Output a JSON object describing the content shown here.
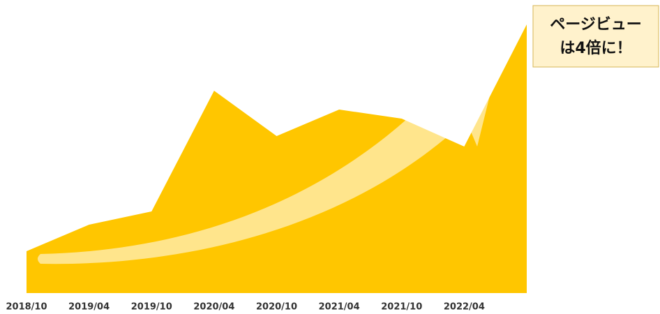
{
  "chart_data": {
    "type": "area",
    "categories": [
      "2018/10",
      "2019/04",
      "2019/10",
      "2020/04",
      "2020/10",
      "2021/04",
      "2021/10",
      "2022/04",
      null
    ],
    "values": [
      60,
      98,
      117,
      290,
      225,
      263,
      250,
      210,
      385
    ],
    "color": "#ffc600",
    "ylim": [
      0,
      385
    ],
    "annotation": [
      "ページビュー",
      "は4倍に！"
    ]
  }
}
